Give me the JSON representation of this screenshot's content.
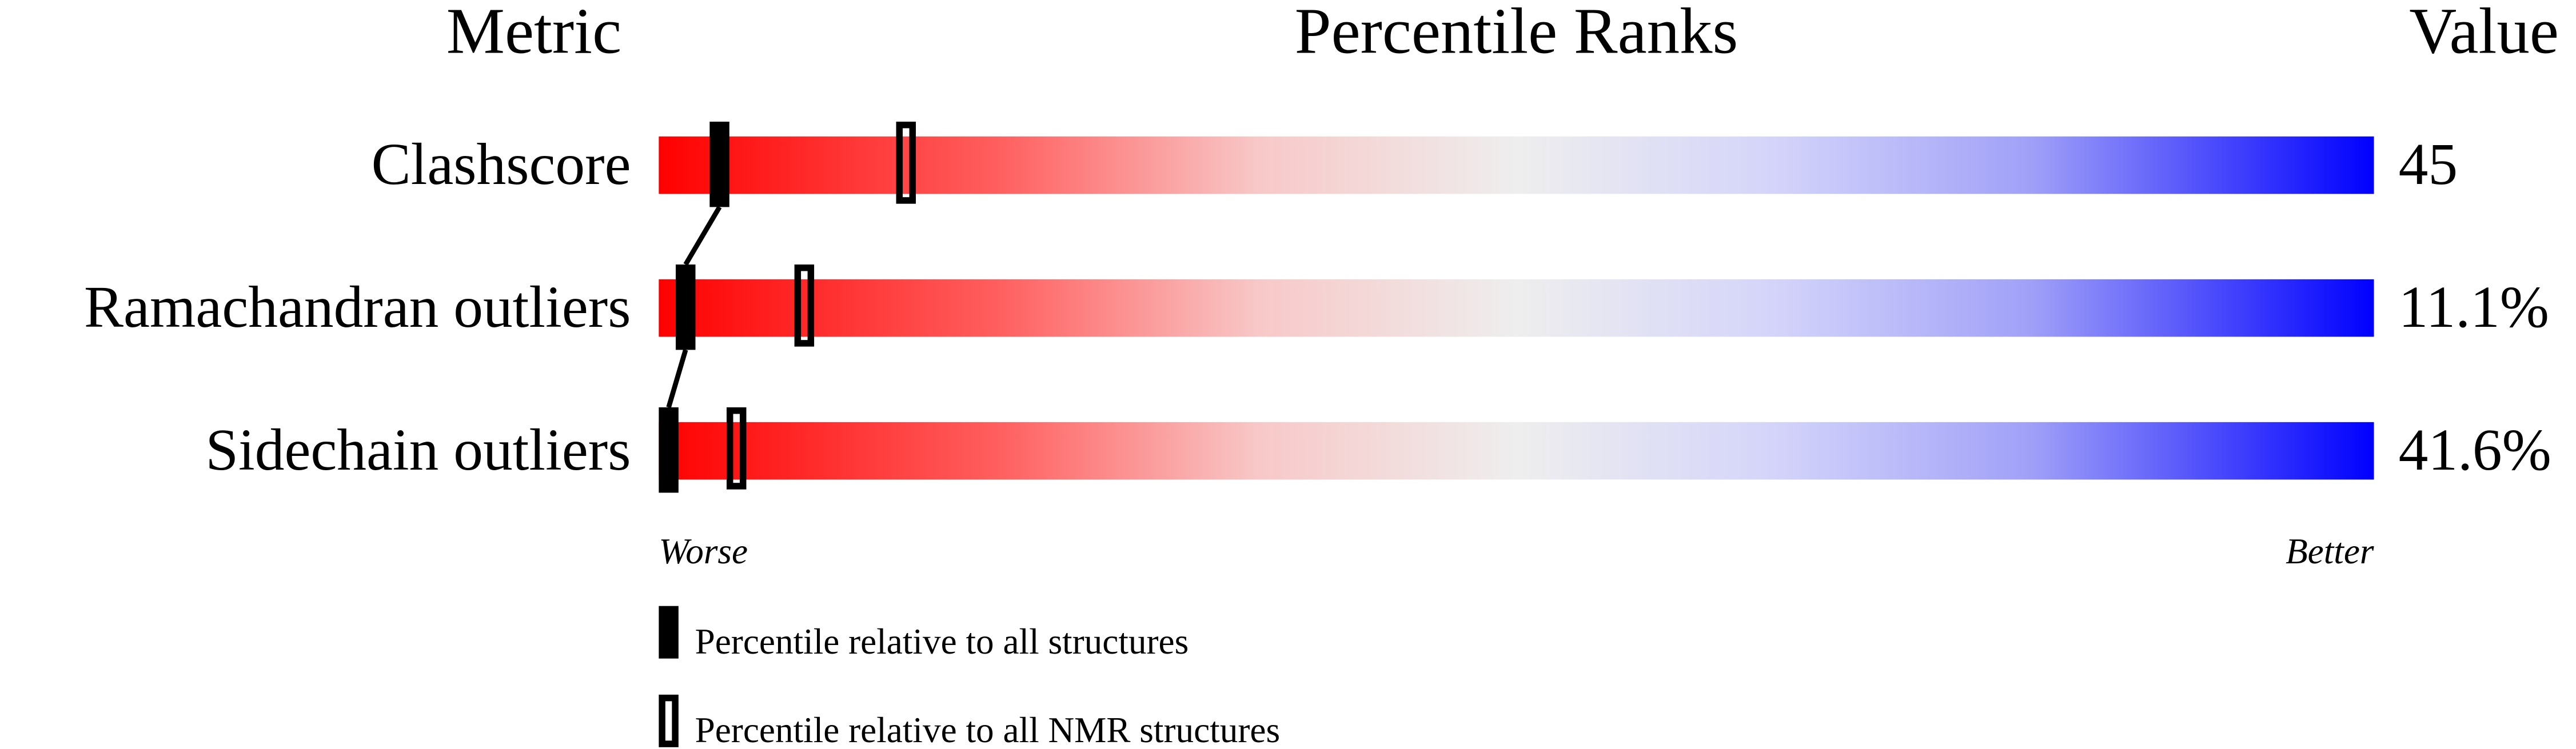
{
  "chart_data": {
    "type": "percentile-bar",
    "headers": {
      "metric": "Metric",
      "ranks": "Percentile Ranks",
      "value": "Value"
    },
    "xlim": [
      0,
      100
    ],
    "axis_labels": {
      "left": "Worse",
      "right": "Better"
    },
    "gradient_colors": [
      "#ff0000",
      "#eeeeee",
      "#0000ff"
    ],
    "metrics": [
      {
        "label": "Clashscore",
        "value": "45",
        "percentile_all": 3,
        "percentile_nmr": 14
      },
      {
        "label": "Ramachandran outliers",
        "value": "11.1%",
        "percentile_all": 1,
        "percentile_nmr": 8
      },
      {
        "label": "Sidechain outliers",
        "value": "41.6%",
        "percentile_all": 0,
        "percentile_nmr": 4
      }
    ],
    "legend": [
      {
        "marker": "filled",
        "label": "Percentile relative to all structures"
      },
      {
        "marker": "open",
        "label": "Percentile relative to all NMR structures"
      }
    ]
  }
}
